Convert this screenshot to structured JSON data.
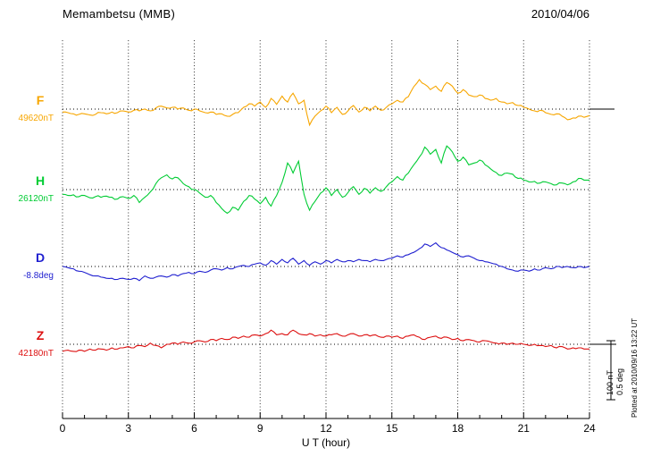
{
  "chart_data": {
    "type": "line",
    "title": "Memambetsu (MMB)",
    "date": "2010/04/06",
    "xlabel": "U T (hour)",
    "xlim": [
      0,
      24
    ],
    "x_ticks": [
      0,
      3,
      6,
      9,
      12,
      15,
      18,
      21,
      24
    ],
    "x_step_hours": 0.25,
    "grid": "dotted vertical lines every 3 h; dotted horizontal baseline per component",
    "legend_position": "left baseline labels",
    "scale_bar": {
      "nT_label": "100 nT",
      "deg_label": "0.5 deg"
    },
    "plotted_at": "Plotted at 2010/09/16 13:22 UT",
    "series": [
      {
        "name": "F",
        "baseline_value": "49620nT",
        "unit": "nT",
        "color": "#f7a600",
        "offsets_from_baseline": [
          -5,
          -6,
          -8,
          -9,
          -8,
          -10,
          -9,
          -6,
          -8,
          -5,
          -6,
          -3,
          -5,
          -2,
          -3,
          0,
          -3,
          2,
          5,
          2,
          3,
          0,
          2,
          -2,
          0,
          -3,
          -6,
          -5,
          -9,
          -8,
          -12,
          -9,
          -6,
          3,
          9,
          5,
          12,
          3,
          18,
          8,
          22,
          12,
          27,
          9,
          15,
          -27,
          -12,
          -3,
          5,
          -6,
          3,
          -9,
          -3,
          6,
          -5,
          3,
          -3,
          5,
          -2,
          3,
          9,
          15,
          12,
          21,
          38,
          50,
          42,
          33,
          39,
          30,
          45,
          39,
          27,
          33,
          24,
          21,
          24,
          18,
          15,
          18,
          12,
          9,
          11,
          6,
          3,
          0,
          -3,
          -2,
          -6,
          -9,
          -8,
          -12,
          -18,
          -15,
          -12,
          -14,
          -11
        ]
      },
      {
        "name": "H",
        "baseline_value": "26120nT",
        "unit": "nT",
        "color": "#00cc33",
        "offsets_from_baseline": [
          -8,
          -10,
          -9,
          -12,
          -10,
          -14,
          -12,
          -13,
          -11,
          -13,
          -16,
          -12,
          -15,
          -10,
          -22,
          -13,
          -4,
          10,
          20,
          25,
          18,
          20,
          10,
          5,
          0,
          -6,
          -13,
          -10,
          -22,
          -32,
          -40,
          -30,
          -35,
          -20,
          -10,
          -16,
          -24,
          -13,
          -28,
          -10,
          12,
          45,
          28,
          48,
          -8,
          -35,
          -20,
          -6,
          3,
          -10,
          0,
          -13,
          -5,
          5,
          -8,
          2,
          -6,
          3,
          -3,
          5,
          13,
          22,
          16,
          28,
          42,
          55,
          72,
          60,
          68,
          45,
          74,
          64,
          48,
          55,
          42,
          45,
          50,
          42,
          35,
          29,
          24,
          28,
          26,
          19,
          16,
          13,
          14,
          11,
          13,
          10,
          8,
          11,
          8,
          13,
          19,
          16,
          16
        ]
      },
      {
        "name": "D",
        "baseline_value": "-8.8deg",
        "unit": "deg",
        "color": "#2020d0",
        "offsets_from_baseline": [
          0,
          -0.01,
          -0.02,
          -0.04,
          -0.05,
          -0.07,
          -0.08,
          -0.09,
          -0.1,
          -0.1,
          -0.11,
          -0.1,
          -0.11,
          -0.1,
          -0.12,
          -0.08,
          -0.1,
          -0.09,
          -0.08,
          -0.09,
          -0.07,
          -0.08,
          -0.06,
          -0.05,
          -0.06,
          -0.04,
          -0.05,
          -0.03,
          -0.02,
          -0.03,
          -0.01,
          -0.02,
          0,
          0.01,
          0,
          0.02,
          0.03,
          0.01,
          0.05,
          0.02,
          0.06,
          0.03,
          0.07,
          0.02,
          0.05,
          0.01,
          0.04,
          0.02,
          0.05,
          0.03,
          0.06,
          0.04,
          0.05,
          0.04,
          0.06,
          0.05,
          0.04,
          0.06,
          0.05,
          0.06,
          0.07,
          0.09,
          0.08,
          0.1,
          0.12,
          0.15,
          0.19,
          0.17,
          0.2,
          0.16,
          0.14,
          0.12,
          0.1,
          0.08,
          0.09,
          0.07,
          0.05,
          0.04,
          0.03,
          0.02,
          0,
          -0.02,
          -0.03,
          -0.04,
          -0.03,
          -0.04,
          -0.02,
          -0.03,
          -0.01,
          -0.02,
          0,
          -0.01,
          0,
          -0.01,
          0,
          -0.01,
          0
        ]
      },
      {
        "name": "Z",
        "baseline_value": "42180nT",
        "unit": "nT",
        "color": "#dd1111",
        "offsets_from_baseline": [
          -12,
          -10,
          -12,
          -10,
          -12,
          -8,
          -10,
          -8,
          -10,
          -6,
          -8,
          -6,
          -4,
          -6,
          -2,
          -4,
          2,
          -2,
          -6,
          0,
          2,
          0,
          4,
          2,
          4,
          6,
          4,
          8,
          6,
          10,
          8,
          12,
          10,
          14,
          12,
          16,
          14,
          18,
          24,
          16,
          18,
          16,
          24,
          18,
          16,
          18,
          14,
          16,
          14,
          16,
          18,
          14,
          16,
          18,
          14,
          16,
          14,
          16,
          12,
          14,
          12,
          14,
          10,
          14,
          16,
          12,
          8,
          12,
          14,
          10,
          12,
          8,
          10,
          6,
          8,
          6,
          4,
          6,
          4,
          2,
          2,
          0,
          2,
          0,
          0,
          -2,
          0,
          -2,
          -4,
          -2,
          -6,
          -4,
          -8,
          -6,
          -6,
          -8,
          -8
        ]
      }
    ]
  }
}
